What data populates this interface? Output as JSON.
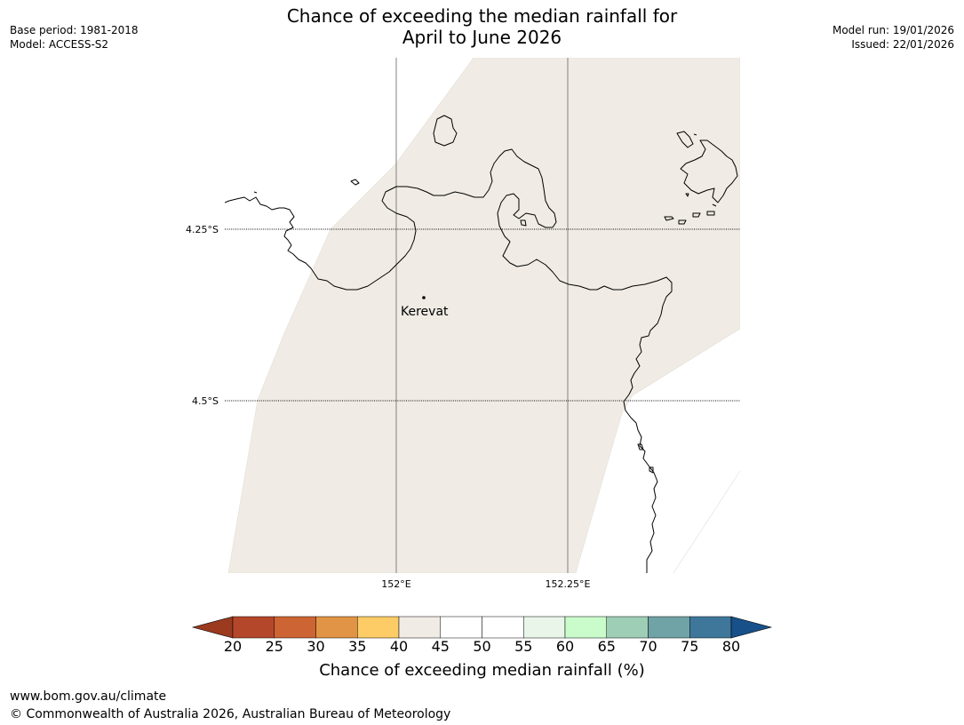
{
  "header": {
    "title_line1": "Chance of exceeding the median rainfall for",
    "title_line2": "April to June 2026",
    "base_period": "Base period: 1981-2018",
    "model": "Model: ACCESS-S2",
    "model_run": "Model run: 19/01/2026",
    "issued": "Issued: 22/01/2026"
  },
  "map": {
    "latitude_labels": [
      "4.25°S",
      "4.5°S"
    ],
    "longitude_labels": [
      "152°E",
      "152.25°E"
    ],
    "place_label": "Kerevat",
    "shaded_class": "40-45",
    "shade_color": "#f0ebe4",
    "land_outline_color": "#000000",
    "grid_line_color": "#808080"
  },
  "colorbar": {
    "ticks": [
      "20",
      "25",
      "30",
      "35",
      "40",
      "45",
      "50",
      "55",
      "60",
      "65",
      "70",
      "75",
      "80"
    ],
    "colors": [
      "#9b3a1f",
      "#b4472a",
      "#cd6433",
      "#e29446",
      "#fdcc66",
      "#f0ebe4",
      "#ffffff",
      "#ffffff",
      "#e8f5e8",
      "#c9fcca",
      "#9ecfb6",
      "#6fa3a6",
      "#3f779a",
      "#18508a"
    ],
    "label": "Chance of exceeding median rainfall (%)"
  },
  "footer": {
    "url": "www.bom.gov.au/climate",
    "copyright": "© Commonwealth of Australia 2026, Australian Bureau of Meteorology"
  }
}
